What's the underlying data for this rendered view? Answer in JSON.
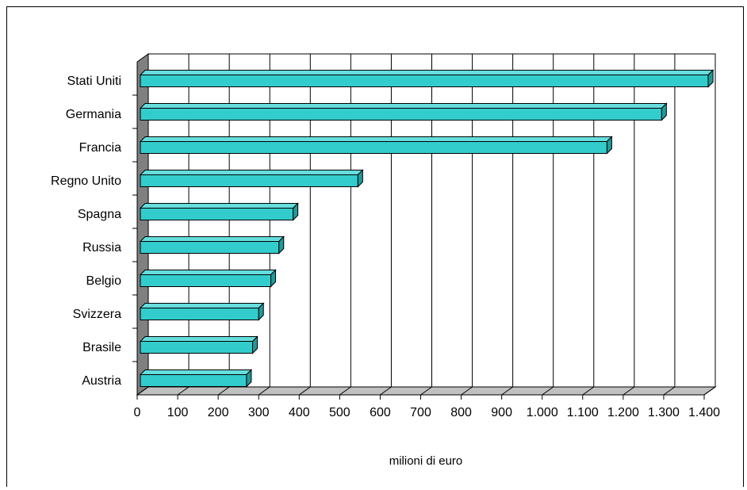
{
  "chart_data": {
    "type": "bar",
    "orientation": "horizontal",
    "style": "3d",
    "categories": [
      "Stati Uniti",
      "Germania",
      "Francia",
      "Regno Unito",
      "Spagna",
      "Russia",
      "Belgio",
      "Svizzera",
      "Brasile",
      "Austria"
    ],
    "values": [
      1410,
      1295,
      1160,
      545,
      385,
      350,
      330,
      300,
      285,
      270
    ],
    "xlabel": "milioni di euro",
    "xlim": [
      0,
      1400
    ],
    "xticks": [
      "0",
      "100",
      "200",
      "300",
      "400",
      "500",
      "600",
      "700",
      "800",
      "900",
      "1.000",
      "1.100",
      "1.200",
      "1.300",
      "1.400"
    ],
    "grid": true,
    "bar_color": "#33CCCC",
    "wall_color": "#C0C0C0",
    "side_wall_color": "#808080"
  }
}
